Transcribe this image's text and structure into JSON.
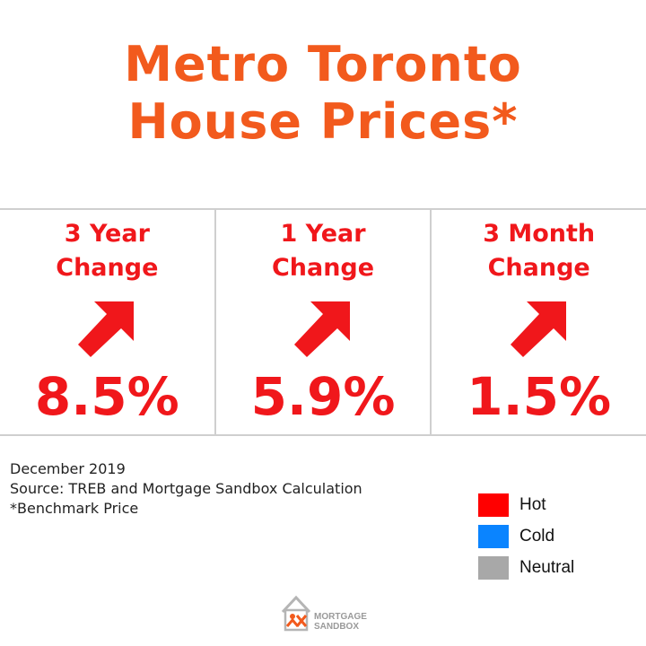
{
  "title": {
    "line1": "Metro Toronto",
    "line2": "House Prices*"
  },
  "cards": [
    {
      "label_line1": "3 Year",
      "label_line2": "Change",
      "value": "8.5%",
      "direction": "up",
      "status": "Hot"
    },
    {
      "label_line1": "1 Year",
      "label_line2": "Change",
      "value": "5.9%",
      "direction": "up",
      "status": "Hot"
    },
    {
      "label_line1": "3 Month",
      "label_line2": "Change",
      "value": "1.5%",
      "direction": "up",
      "status": "Hot"
    }
  ],
  "notes": {
    "date": "December 2019",
    "source": "Source: TREB and Mortgage Sandbox Calculation",
    "footnote": "*Benchmark Price"
  },
  "legend": [
    {
      "label": "Hot",
      "color": "#ff0000"
    },
    {
      "label": "Cold",
      "color": "#0a84ff"
    },
    {
      "label": "Neutral",
      "color": "#a8a8a8"
    }
  ],
  "colors": {
    "title": "#f25a1d",
    "accent": "#f0171b"
  },
  "logo": {
    "line1": "MORTGAGE",
    "line2": "SANDBOX",
    "icon": "house-logo-icon"
  }
}
